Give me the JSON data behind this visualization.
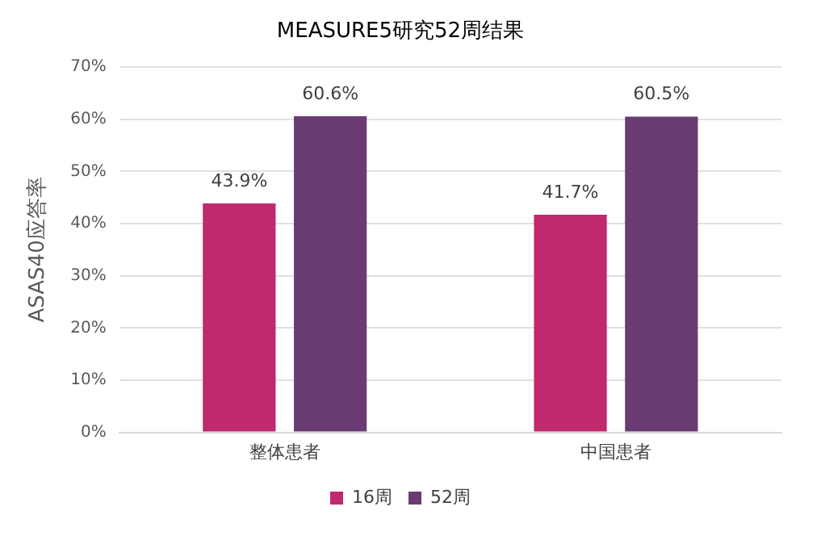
{
  "chart_data": {
    "type": "bar",
    "title": "MEASURE5研究52周结果",
    "ylabel": "ASAS40应答率",
    "categories": [
      "整体患者",
      "中国患者"
    ],
    "series": [
      {
        "name": "16周",
        "color": "#c0296d",
        "values": [
          43.9,
          41.7
        ],
        "value_labels": [
          "43.9%",
          "41.7%"
        ]
      },
      {
        "name": "52周",
        "color": "#6b3b73",
        "values": [
          60.6,
          60.5
        ],
        "value_labels": [
          "60.6%",
          "60.5%"
        ]
      }
    ],
    "ylim": [
      0,
      70
    ],
    "yticks": [
      {
        "value": 0,
        "label": "0%"
      },
      {
        "value": 10,
        "label": "10%"
      },
      {
        "value": 20,
        "label": "20%"
      },
      {
        "value": 30,
        "label": "30%"
      },
      {
        "value": 40,
        "label": "40%"
      },
      {
        "value": 50,
        "label": "50%"
      },
      {
        "value": 60,
        "label": "60%"
      },
      {
        "value": 70,
        "label": "70%"
      }
    ],
    "grid": "y",
    "legend": "bottom"
  }
}
